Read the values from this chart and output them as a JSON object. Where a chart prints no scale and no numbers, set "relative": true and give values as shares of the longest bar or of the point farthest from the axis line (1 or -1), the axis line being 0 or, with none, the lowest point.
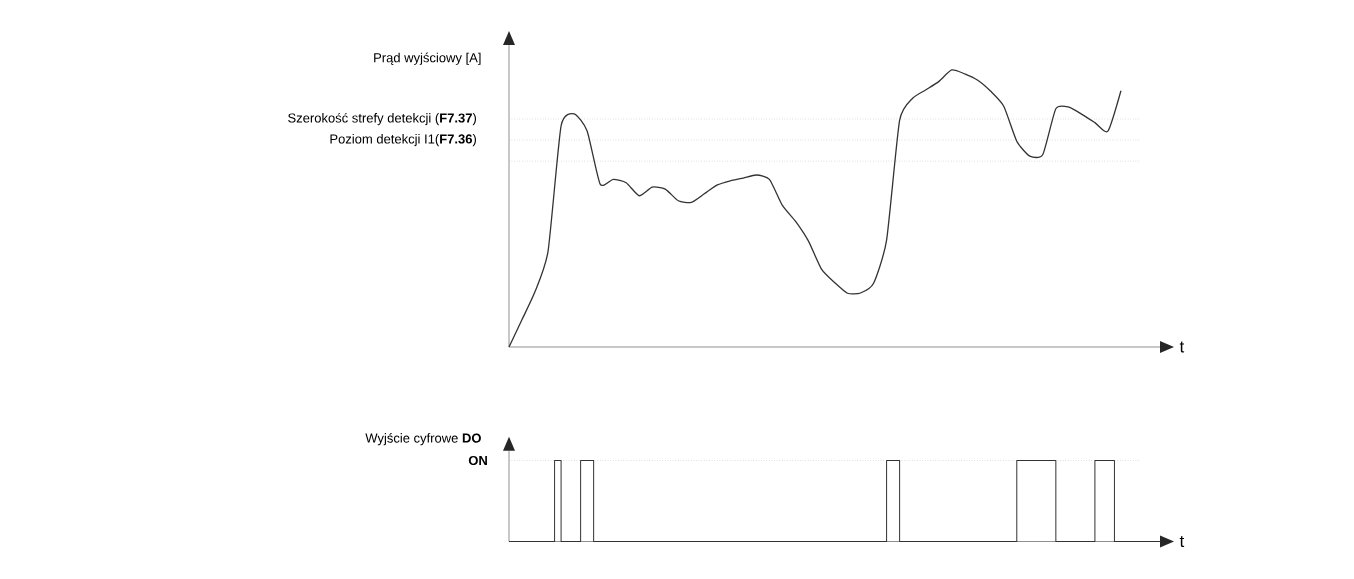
{
  "chart_data": [
    {
      "type": "line",
      "relative": true,
      "ylabel": "Prąd wyjściowy [A]",
      "xlabel": "t",
      "marker": "none",
      "line_style": "solid",
      "categories": [
        null,
        null,
        null,
        null,
        null,
        null,
        null,
        null,
        null,
        null,
        null,
        null,
        null,
        null,
        null,
        null,
        null,
        null,
        null,
        null,
        null,
        null,
        null,
        null,
        null,
        null,
        null,
        null,
        null,
        null,
        null,
        null,
        null,
        null,
        null,
        null,
        null,
        null,
        null,
        null,
        null,
        null,
        null,
        null,
        null,
        null,
        null,
        null,
        null,
        null,
        null
      ],
      "series": [
        {
          "color": "#333333",
          "values": [
            0,
            0.099,
            0.2,
            0.346,
            0.798,
            0.842,
            0.78,
            0.588,
            0.605,
            0.593,
            0.546,
            0.577,
            0.57,
            0.528,
            0.522,
            0.553,
            0.585,
            0.6,
            0.61,
            0.621,
            0.605,
            0.511,
            0.454,
            0.382,
            0.281,
            0.233,
            0.194,
            0.195,
            0.23,
            0.386,
            0.818,
            0.898,
            0.928,
            0.958,
            1,
            0.986,
            0.963,
            0.923,
            0.869,
            0.743,
            0.689,
            0.695,
            0.86,
            0.866,
            0.84,
            0.81,
            0.779,
            0.925,
            null,
            null,
            null
          ]
        }
      ],
      "ref_lines": [
        {
          "axis": "y",
          "value": 0.823,
          "label": "Szerokość strefy detekcji (**F7.37**)",
          "color": "#aaaaaa",
          "line_style": "dotted"
        },
        {
          "axis": "y",
          "value": 0.747,
          "label": "Poziom detekcji I1(**F7.36**)",
          "color": "#aaaaaa",
          "line_style": "dotted"
        },
        {
          "axis": "y",
          "value": 0.671,
          "color": "#aaaaaa",
          "line_style": "dotted"
        }
      ]
    },
    {
      "type": "step",
      "relative": true,
      "ylabel": "Wyjście cyfrowe **DO**",
      "xlabel": "t",
      "marker": "none",
      "line_style": "solid",
      "categories": [
        null,
        null,
        null,
        null,
        null,
        null,
        null,
        null,
        null,
        null,
        null,
        null,
        null,
        null,
        null,
        null,
        null,
        null,
        null,
        null,
        null,
        null,
        null,
        null,
        null,
        null,
        null,
        null,
        null,
        null,
        null,
        null,
        null,
        null,
        null,
        null,
        null,
        null,
        null,
        null,
        null,
        null,
        null,
        null,
        null,
        null,
        null,
        null,
        null,
        null,
        null,
        null,
        null,
        null,
        null,
        null,
        null,
        null,
        null,
        null,
        null,
        null,
        null,
        null,
        null,
        null,
        null,
        null,
        null,
        null,
        null,
        null,
        null,
        null,
        null,
        null,
        null,
        null,
        null,
        null,
        null,
        null,
        null,
        null,
        null,
        null,
        null,
        null,
        null,
        null,
        null,
        null,
        null,
        null,
        null,
        null,
        null,
        null,
        null,
        null,
        null
      ],
      "series": [
        {
          "color": "#333333",
          "values": [
            0,
            0,
            0,
            0,
            0,
            0,
            0,
            1,
            0,
            0,
            0,
            1,
            1,
            0,
            0,
            0,
            0,
            0,
            0,
            0,
            0,
            0,
            0,
            0,
            0,
            0,
            0,
            0,
            0,
            0,
            0,
            0,
            0,
            0,
            0,
            0,
            0,
            0,
            0,
            0,
            0,
            0,
            0,
            0,
            0,
            0,
            0,
            0,
            0,
            0,
            0,
            0,
            0,
            0,
            0,
            0,
            0,
            0,
            1,
            1,
            0,
            0,
            0,
            0,
            0,
            0,
            0,
            0,
            0,
            0,
            0,
            0,
            0,
            0,
            0,
            0,
            0,
            0,
            1,
            1,
            1,
            1,
            1,
            1,
            0,
            0,
            0,
            0,
            0,
            0,
            1,
            1,
            1,
            0,
            0,
            0,
            0,
            0,
            0,
            0,
            0
          ]
        }
      ],
      "ref_lines": [
        {
          "axis": "y",
          "value": 1,
          "label": "**ON**",
          "color": "#aaaaaa",
          "line_style": "dotted"
        }
      ]
    }
  ]
}
